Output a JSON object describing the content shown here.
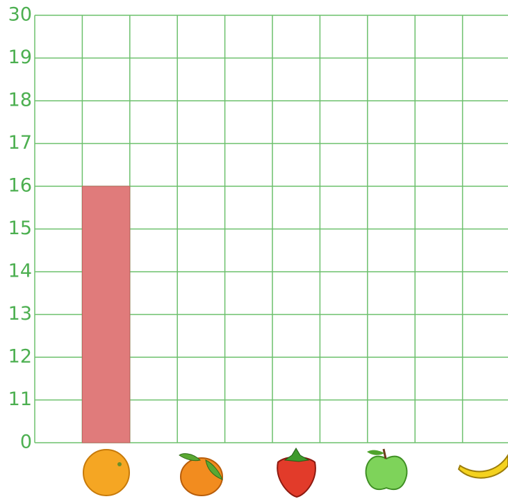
{
  "chart_data": {
    "type": "bar",
    "categories": [
      null,
      null,
      null,
      null,
      null
    ],
    "values": [
      16,
      null,
      null,
      null,
      null
    ],
    "color": "#e07b7b",
    "ylim": [
      0,
      30
    ],
    "yticks": [
      0,
      11,
      12,
      13,
      14,
      15,
      16,
      17,
      18,
      19,
      30
    ],
    "grid": true
  }
}
